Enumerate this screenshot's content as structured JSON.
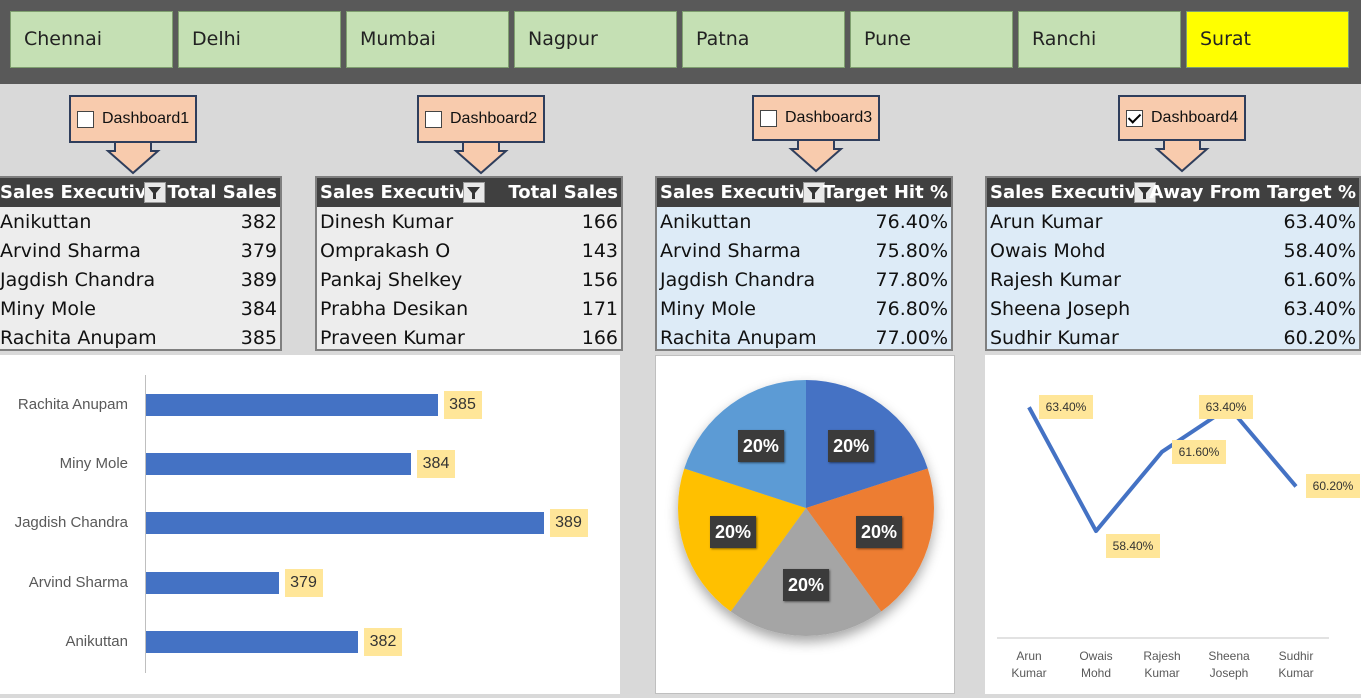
{
  "cities": [
    "Chennai",
    "Delhi",
    "Mumbai",
    "Nagpur",
    "Patna",
    "Pune",
    "Ranchi",
    "Surat"
  ],
  "active_city": "Surat",
  "colors": {
    "active_city": "#ffff00",
    "city": "#c5e0b4",
    "bar": "#4472c4",
    "label_bg": "#ffe699",
    "callout": "#f8cbad"
  },
  "dashboards": [
    {
      "label": "Dashboard1",
      "checked": false
    },
    {
      "label": "Dashboard2",
      "checked": false
    },
    {
      "label": "Dashboard3",
      "checked": false
    },
    {
      "label": "Dashboard4",
      "checked": true
    }
  ],
  "tables": [
    {
      "col1": "Sales Executive",
      "col2": "Total Sales",
      "rows": [
        [
          "Anikuttan",
          "382"
        ],
        [
          "Arvind Sharma",
          "379"
        ],
        [
          "Jagdish Chandra",
          "389"
        ],
        [
          "Miny Mole",
          "384"
        ],
        [
          "Rachita Anupam",
          "385"
        ]
      ]
    },
    {
      "col1": "Sales Executive",
      "col2": "Total Sales",
      "rows": [
        [
          "Dinesh Kumar",
          "166"
        ],
        [
          "Omprakash O",
          "143"
        ],
        [
          "Pankaj Shelkey",
          "156"
        ],
        [
          "Prabha Desikan",
          "171"
        ],
        [
          "Praveen Kumar",
          "166"
        ]
      ]
    },
    {
      "col1": "Sales Executive",
      "col2": "Target Hit %",
      "rows": [
        [
          "Anikuttan",
          "76.40%"
        ],
        [
          "Arvind Sharma",
          "75.80%"
        ],
        [
          "Jagdish Chandra",
          "77.80%"
        ],
        [
          "Miny Mole",
          "76.80%"
        ],
        [
          "Rachita Anupam",
          "77.00%"
        ]
      ]
    },
    {
      "col1": "Sales Executive",
      "col2": "Away From Target %",
      "rows": [
        [
          "Arun Kumar",
          "63.40%"
        ],
        [
          "Owais Mohd",
          "58.40%"
        ],
        [
          "Rajesh Kumar",
          "61.60%"
        ],
        [
          "Sheena Joseph",
          "63.40%"
        ],
        [
          "Sudhir Kumar",
          "60.20%"
        ]
      ]
    }
  ],
  "chart_data": [
    {
      "type": "bar",
      "orientation": "horizontal",
      "categories": [
        "Rachita Anupam",
        "Miny Mole",
        "Jagdish Chandra",
        "Arvind Sharma",
        "Anikuttan"
      ],
      "values": [
        385,
        384,
        389,
        379,
        382
      ],
      "labels": [
        "385",
        "384",
        "389",
        "379",
        "382"
      ],
      "xlim": [
        374,
        390
      ],
      "grid": false
    },
    {
      "type": "pie",
      "values": [
        20,
        20,
        20,
        20,
        20
      ],
      "labels": [
        "20%",
        "20%",
        "20%",
        "20%",
        "20%"
      ],
      "colors": [
        "#4472c4",
        "#ed7d31",
        "#a5a5a5",
        "#ffc000",
        "#5b9bd5"
      ]
    },
    {
      "type": "line",
      "categories": [
        "Arun Kumar",
        "Owais Mohd",
        "Rajesh Kumar",
        "Sheena Joseph",
        "Sudhir Kumar"
      ],
      "category_lines": [
        [
          "Arun",
          "Kumar"
        ],
        [
          "Owais",
          "Mohd"
        ],
        [
          "Rajesh",
          "Kumar"
        ],
        [
          "Sheena",
          "Joseph"
        ],
        [
          "Sudhir",
          "Kumar"
        ]
      ],
      "values": [
        63.4,
        58.4,
        61.6,
        63.4,
        60.2
      ],
      "labels": [
        "63.40%",
        "58.40%",
        "61.60%",
        "63.40%",
        "60.20%"
      ],
      "ylim": [
        54,
        64.5
      ],
      "grid": false
    }
  ]
}
